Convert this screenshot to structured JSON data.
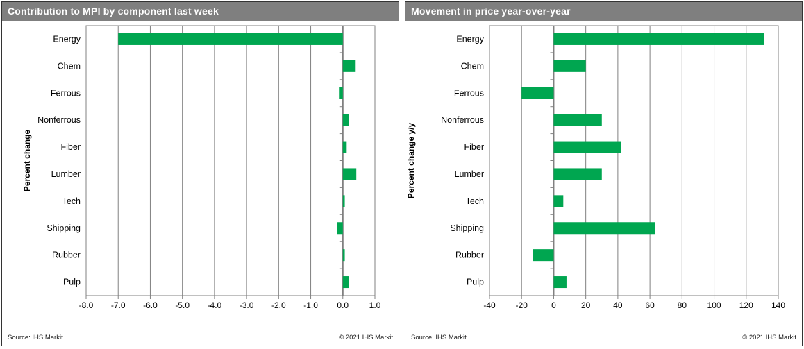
{
  "colors": {
    "bar": "#00A650",
    "titlebar_bg": "#7F7F7F",
    "titlebar_text": "#FFFFFF",
    "gridline": "#808080",
    "footer_text": "#1A1A1A"
  },
  "chart_data": [
    {
      "type": "bar",
      "orientation": "horizontal",
      "title": "Contribution to MPI by component last week",
      "xlabel": "",
      "ylabel": "Percent change",
      "categories": [
        "Energy",
        "Chem",
        "Ferrous",
        "Nonferrous",
        "Fiber",
        "Lumber",
        "Tech",
        "Shipping",
        "Rubber",
        "Pulp"
      ],
      "values": [
        -7.0,
        0.4,
        -0.12,
        0.18,
        0.12,
        0.42,
        0.06,
        -0.18,
        0.06,
        0.18
      ],
      "xlim": [
        -8.0,
        1.0
      ],
      "xticks": [
        -8,
        -7,
        -6,
        -5,
        -4,
        -3,
        -2,
        -1,
        0,
        1
      ],
      "xtick_labels": [
        "-8.0",
        "-7.0",
        "-6.0",
        "-5.0",
        "-4.0",
        "-3.0",
        "-2.0",
        "-1.0",
        "0.0",
        "1.0"
      ],
      "grid": true,
      "legend": null,
      "source": "Source:  IHS Markit",
      "copyright": "© 2021  IHS Markit"
    },
    {
      "type": "bar",
      "orientation": "horizontal",
      "title": "Movement in price year-over-year",
      "xlabel": "",
      "ylabel": "Percent change y/y",
      "categories": [
        "Energy",
        "Chem",
        "Ferrous",
        "Nonferrous",
        "Fiber",
        "Lumber",
        "Tech",
        "Shipping",
        "Rubber",
        "Pulp"
      ],
      "values": [
        131,
        20,
        -20,
        30,
        42,
        30,
        6,
        63,
        -13,
        8
      ],
      "xlim": [
        -40,
        140
      ],
      "xticks": [
        -40,
        -20,
        0,
        20,
        40,
        60,
        80,
        100,
        120,
        140
      ],
      "xtick_labels": [
        "-40",
        "-20",
        "0",
        "20",
        "40",
        "60",
        "80",
        "100",
        "120",
        "140"
      ],
      "grid": true,
      "legend": null,
      "source": "Source:  IHS Markit",
      "copyright": "© 2021  IHS Markit"
    }
  ]
}
